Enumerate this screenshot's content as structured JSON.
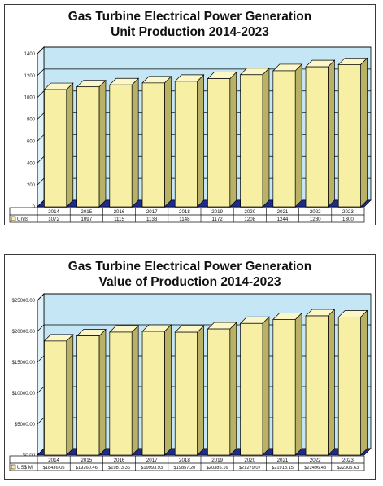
{
  "chart_data": [
    {
      "type": "bar",
      "title_line1": "Gas Turbine Electrical Power Generation",
      "title_line2": "Unit Production 2014-2023",
      "categories": [
        "2014",
        "2015",
        "2016",
        "2017",
        "2018",
        "2019",
        "2020",
        "2021",
        "2022",
        "2023"
      ],
      "series": [
        {
          "name": "Units",
          "values": [
            1072,
            1097,
            1115,
            1133,
            1148,
            1172,
            1208,
            1244,
            1280,
            1300
          ]
        }
      ],
      "value_labels": [
        "1072",
        "1097",
        "1115",
        "1133",
        "1148",
        "1172",
        "1208",
        "1244",
        "1280",
        "1300"
      ],
      "ylim": [
        0,
        1400
      ],
      "yticks": [
        "0",
        "200",
        "400",
        "600",
        "800",
        "1000",
        "1200",
        "1400"
      ],
      "grid": true,
      "colors": {
        "bar_front": "#f7f0a4",
        "bar_side": "#b9b266",
        "bar_top": "#fcf7c6",
        "back_wall": "#c5e6f5",
        "floor": "#1e2a8c"
      }
    },
    {
      "type": "bar",
      "title_line1": "Gas Turbine Electrical Power Generation",
      "title_line2": "Value of Production 2014-2023",
      "categories": [
        "2014",
        "2015",
        "2016",
        "2017",
        "2018",
        "2019",
        "2020",
        "2021",
        "2022",
        "2023"
      ],
      "series": [
        {
          "name": "US$ M",
          "values": [
            18436.05,
            19260.46,
            19873.36,
            19993.93,
            19857.2,
            20385.16,
            21279.07,
            21913.15,
            22496.48,
            22305.63
          ]
        }
      ],
      "value_labels": [
        "$18436.05",
        "$19260.46",
        "$19873.36",
        "$19993.93",
        "$19857.20",
        "$20385.16",
        "$21279.07",
        "$21913.15",
        "$22496.48",
        "$22305.63"
      ],
      "ylim": [
        0,
        25000
      ],
      "yticks": [
        "$0.00",
        "$5000.00",
        "$10000.00",
        "$15000.00",
        "$20000.00",
        "$25000.00"
      ],
      "grid": true,
      "colors": {
        "bar_front": "#f7f0a4",
        "bar_side": "#b9b266",
        "bar_top": "#fcf7c6",
        "back_wall": "#c5e6f5",
        "floor": "#1e2a8c"
      }
    }
  ]
}
